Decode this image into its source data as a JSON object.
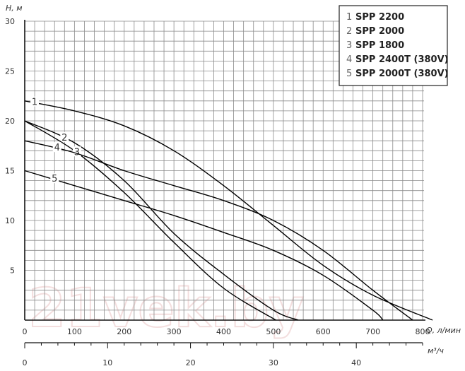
{
  "chart_data": {
    "type": "line",
    "y_axis": {
      "label": "H, м",
      "range": [
        0,
        30
      ],
      "ticks": [
        5,
        10,
        15,
        20,
        25,
        30
      ]
    },
    "x_axis": {
      "label": "Q, л/мин",
      "range": [
        0,
        800
      ],
      "ticks": [
        0,
        100,
        200,
        300,
        400,
        500,
        600,
        700,
        800
      ]
    },
    "x2_axis": {
      "label": "м³/ч",
      "range": [
        0,
        48
      ],
      "ticks": [
        0,
        10,
        20,
        30,
        40
      ]
    },
    "grid": true,
    "legend_position": "top-right",
    "series": [
      {
        "name": "SPP 2200",
        "label": "1",
        "x": [
          0,
          100,
          200,
          300,
          400,
          500,
          600,
          700,
          820
        ],
        "y": [
          22,
          21,
          19.5,
          17,
          13.5,
          9.5,
          5.5,
          2.5,
          0
        ]
      },
      {
        "name": "SPP 2000",
        "label": "2",
        "x": [
          0,
          100,
          200,
          300,
          400,
          500,
          550
        ],
        "y": [
          20,
          17.8,
          14,
          8.7,
          4.6,
          1,
          0
        ]
      },
      {
        "name": "SPP 1800",
        "label": "3",
        "x": [
          0,
          100,
          200,
          300,
          400,
          505
        ],
        "y": [
          20,
          17,
          12.8,
          7.8,
          3.2,
          0
        ]
      },
      {
        "name": "SPP 2400T (380V)",
        "label": "4",
        "x": [
          0,
          100,
          200,
          300,
          400,
          500,
          600,
          700,
          780
        ],
        "y": [
          18,
          16.8,
          15,
          13.5,
          12,
          10,
          7,
          3,
          0
        ]
      },
      {
        "name": "SPP 2000T (380V)",
        "label": "5",
        "x": [
          0,
          100,
          200,
          300,
          400,
          500,
          600,
          700,
          720
        ],
        "y": [
          15,
          13.5,
          12,
          10.5,
          8.8,
          7,
          4.5,
          1,
          0
        ]
      }
    ],
    "watermark": "21vek.by"
  }
}
